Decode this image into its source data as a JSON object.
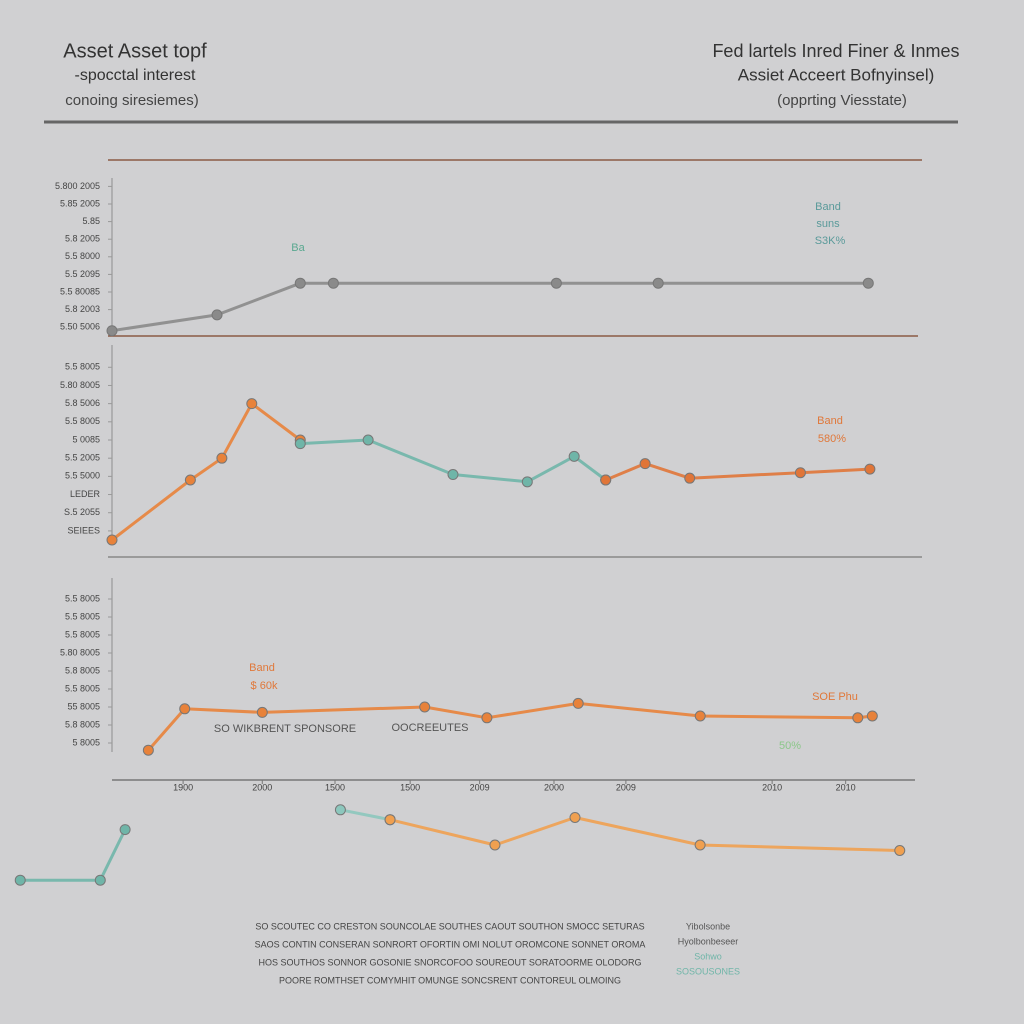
{
  "header": {
    "left": [
      "Asset Asset topf",
      "-spocctal interest",
      "conoing siresiemes)"
    ],
    "right": [
      "Fed lartels Inred Finer & Inmes",
      "Assiet Acceert Bofnyinsel)",
      "(opprting Viesstate)"
    ]
  },
  "footer": {
    "left": [
      "SO SCOUTEC CO CRESTON SOUNCOLAE SOUTHES CAOUT SOUTHON SMOCC SETURAS",
      "SAOS CONTIN CONSERAN SONRORT OFORTIN OMI NOLUT OROMCONE SONNET OROMA",
      "HOS SOUTHOS SONNOR GOSONIE SNORCOFOO SOUREOUT SORATOORME OLODORG",
      "POORE ROMTHSET COMYMHIT OMUNGE SONCSRENT CONTOREUL OLMOING"
    ],
    "right": [
      "Yibolsonbe",
      "Hyolbonbeseer",
      "Sohwo",
      "SOSOUSONES"
    ]
  },
  "chart_data": [
    {
      "type": "line",
      "xlim": [
        0,
        100
      ],
      "ylim": [
        0,
        10
      ],
      "yticks": [
        {
          "value": 0.5,
          "label": "5.50 5006"
        },
        {
          "value": 1.5,
          "label": "5.8 2003"
        },
        {
          "value": 2.5,
          "label": "5.5 80085"
        },
        {
          "value": 3.5,
          "label": "5.5 2095"
        },
        {
          "value": 4.5,
          "label": "5.5 8000"
        },
        {
          "value": 5.5,
          "label": "5.8 2005"
        },
        {
          "value": 6.5,
          "label": "5.85"
        },
        {
          "value": 7.5,
          "label": "5.85 2005"
        },
        {
          "value": 8.5,
          "label": "5.800 2005"
        }
      ],
      "annotations": [
        "Ba",
        "Band",
        "suns",
        "S3K%"
      ],
      "series": [
        {
          "color": "#8a8a8a",
          "x": [
            0,
            13,
            23.3,
            27.4,
            55,
            67.6,
            93.6
          ],
          "values": [
            0.3,
            1.2,
            3.0,
            3.0,
            3.0,
            3.0,
            3.0
          ]
        }
      ]
    },
    {
      "type": "line",
      "xlim": [
        0,
        100
      ],
      "ylim": [
        0,
        11
      ],
      "yticks": [
        {
          "value": 0.5,
          "label": "SEIEES"
        },
        {
          "value": 1.5,
          "label": "S.5 2055"
        },
        {
          "value": 2.5,
          "label": "LEDER"
        },
        {
          "value": 3.5,
          "label": "5.5 5000"
        },
        {
          "value": 4.5,
          "label": "5.5 2005"
        },
        {
          "value": 5.5,
          "label": "5 0085"
        },
        {
          "value": 6.5,
          "label": "5.5 8005"
        },
        {
          "value": 7.5,
          "label": "5.8 5006"
        },
        {
          "value": 8.5,
          "label": "5.80 8005"
        },
        {
          "value": 9.5,
          "label": "5.5 8005"
        }
      ],
      "annotations": [
        "Band",
        "580%"
      ],
      "series": [
        {
          "color": "#e8823a",
          "x": [
            0,
            9.7,
            13.6,
            17.3,
            23.3
          ],
          "values": [
            0,
            3.3,
            4.5,
            7.5,
            5.5
          ]
        },
        {
          "color": "#6fb5a8",
          "x": [
            23.3,
            31.7,
            42.2,
            51.4,
            57.2,
            61.1
          ],
          "values": [
            5.3,
            5.5,
            3.6,
            3.2,
            4.6,
            3.3
          ]
        },
        {
          "color": "#e07538",
          "x": [
            61.1,
            65.98,
            71.5,
            85.2,
            93.8
          ],
          "values": [
            3.3,
            4.2,
            3.4,
            3.7,
            3.9
          ]
        }
      ]
    },
    {
      "type": "line",
      "xlim": [
        0,
        100
      ],
      "ylim": [
        0,
        9
      ],
      "yticks": [
        {
          "value": 0.5,
          "label": "5 8005"
        },
        {
          "value": 1.5,
          "label": "5.8 8005"
        },
        {
          "value": 2.5,
          "label": "55 8005"
        },
        {
          "value": 3.5,
          "label": "5.5 8005"
        },
        {
          "value": 4.5,
          "label": "5.8 8005"
        },
        {
          "value": 5.5,
          "label": "5.80 8005"
        },
        {
          "value": 6.5,
          "label": "5.5 8005"
        },
        {
          "value": 7.5,
          "label": "5.5 8005"
        },
        {
          "value": 8.5,
          "label": "5.5 8005"
        }
      ],
      "xticks": [
        {
          "value": 8.8,
          "label": "1900"
        },
        {
          "value": 18.6,
          "label": "2000"
        },
        {
          "value": 27.6,
          "label": "1500"
        },
        {
          "value": 36.9,
          "label": "1500"
        },
        {
          "value": 45.5,
          "label": "2009"
        },
        {
          "value": 54.7,
          "label": "2000"
        },
        {
          "value": 63.6,
          "label": "2009"
        },
        {
          "value": 81.7,
          "label": "2010"
        },
        {
          "value": 90.8,
          "label": "2010"
        }
      ],
      "annotations": [
        "Band",
        "$ 60k",
        "SO WIKBRENT SPONSORE",
        "OOCREEUTES",
        "SOE Phu",
        "50%"
      ],
      "series": [
        {
          "color": "#e8823a",
          "x": [
            4.5,
            9.0,
            18.6,
            38.7,
            46.4,
            57.7,
            72.8,
            92.3,
            94.1
          ],
          "values": [
            0.1,
            2.4,
            2.2,
            2.5,
            1.9,
            2.7,
            2.0,
            1.9,
            2.0
          ]
        }
      ]
    },
    {
      "type": "line",
      "xlim": [
        0,
        100
      ],
      "ylim": [
        0,
        10
      ],
      "series": [
        {
          "color": "#6fb5a8",
          "x": [
            2.2,
            10.9,
            13.6
          ],
          "values": [
            1.8,
            1.8,
            6.4
          ]
        },
        {
          "color": "#8cc7bd",
          "x": [
            37,
            42.4
          ],
          "values": [
            8.2,
            7.3
          ]
        },
        {
          "color": "#f0a050",
          "x": [
            42.4,
            53.8,
            62.5,
            76.1,
            97.8
          ],
          "values": [
            7.3,
            5.0,
            7.5,
            5.0,
            4.5
          ]
        }
      ]
    }
  ]
}
